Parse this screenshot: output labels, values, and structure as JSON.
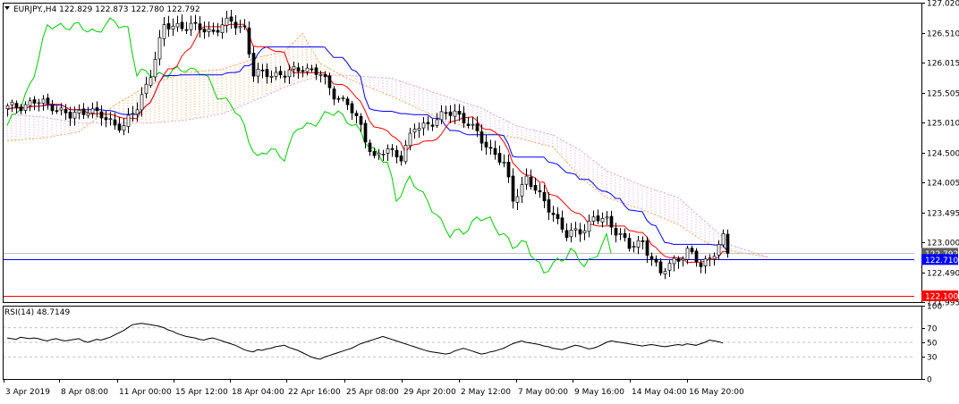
{
  "header": {
    "symbol": "EURJPY.,H4",
    "open": "122.829",
    "high": "122.873",
    "low": "122.780",
    "close": "122.792"
  },
  "rsi": {
    "label": "RSI(14) 48.7149",
    "value": 48.7149
  },
  "chart_data": [
    {
      "type": "candlestick",
      "title": "EURJPY.,H4 122.829 122.873 122.780 122.792",
      "ylim": [
        121.995,
        127.02
      ],
      "y_ticks": [
        "127.020",
        "126.510",
        "126.015",
        "125.505",
        "125.010",
        "124.500",
        "124.005",
        "123.495",
        "123.000",
        "122.490",
        "121.995"
      ],
      "x_ticks": [
        "3 Apr 2019",
        "8 Apr 08:00",
        "11 Apr 00:00",
        "15 Apr 12:00",
        "18 Apr 04:00",
        "22 Apr 16:00",
        "25 Apr 08:00",
        "29 Apr 20:00",
        "2 May 12:00",
        "7 May 00:00",
        "9 May 16:00",
        "14 May 04:00",
        "16 May 20:00"
      ],
      "horizontal_lines": [
        {
          "label": "122.710",
          "value": 122.71,
          "color": "#0000ff"
        },
        {
          "label": "122.100",
          "value": 122.1,
          "color": "#ff0000"
        }
      ],
      "last_price_label": "122.792",
      "colors": {
        "tenkan": "#ff0000",
        "kijun": "#0000ff",
        "chikou": "#00cc00",
        "span_a": "#f4a460",
        "span_b": "#d8a8d8",
        "candle": "#000000"
      },
      "close_anchors": [
        [
          0,
          125.25
        ],
        [
          6,
          125.35
        ],
        [
          10,
          125.3
        ],
        [
          14,
          125.1
        ],
        [
          18,
          125.25
        ],
        [
          22,
          125.05
        ],
        [
          26,
          124.95
        ],
        [
          29,
          125.25
        ],
        [
          32,
          125.85
        ],
        [
          35,
          126.6
        ],
        [
          38,
          126.65
        ],
        [
          42,
          126.6
        ],
        [
          46,
          126.55
        ],
        [
          50,
          126.7
        ],
        [
          53,
          126.6
        ],
        [
          55,
          125.8
        ],
        [
          58,
          125.85
        ],
        [
          62,
          125.8
        ],
        [
          66,
          125.95
        ],
        [
          70,
          125.8
        ],
        [
          73,
          125.5
        ],
        [
          76,
          125.3
        ],
        [
          79,
          124.95
        ],
        [
          82,
          124.4
        ],
        [
          85,
          124.55
        ],
        [
          88,
          124.45
        ],
        [
          91,
          124.9
        ],
        [
          94,
          125.0
        ],
        [
          97,
          125.1
        ],
        [
          100,
          125.2
        ],
        [
          103,
          125.0
        ],
        [
          106,
          124.7
        ],
        [
          109,
          124.5
        ],
        [
          111,
          124.3
        ],
        [
          113,
          123.7
        ],
        [
          116,
          124.1
        ],
        [
          119,
          123.75
        ],
        [
          122,
          123.5
        ],
        [
          125,
          123.1
        ],
        [
          128,
          123.2
        ],
        [
          131,
          123.4
        ],
        [
          134,
          123.35
        ],
        [
          137,
          123.15
        ],
        [
          139,
          122.9
        ],
        [
          142,
          123.0
        ],
        [
          144,
          122.75
        ],
        [
          146,
          122.45
        ],
        [
          149,
          122.7
        ],
        [
          152,
          122.85
        ],
        [
          155,
          122.6
        ],
        [
          158,
          122.85
        ],
        [
          160,
          123.05
        ],
        [
          161,
          122.8
        ]
      ],
      "cloud_anchors": [
        [
          0,
          124.7,
          125.15
        ],
        [
          8,
          124.75,
          125.1
        ],
        [
          16,
          124.85,
          125.0
        ],
        [
          24,
          125.3,
          125.0
        ],
        [
          32,
          125.65,
          125.0
        ],
        [
          40,
          125.85,
          125.05
        ],
        [
          48,
          125.9,
          125.15
        ],
        [
          56,
          126.1,
          125.4
        ],
        [
          62,
          126.2,
          125.6
        ],
        [
          66,
          126.5,
          125.7
        ],
        [
          70,
          126.0,
          125.8
        ],
        [
          76,
          125.75,
          125.8
        ],
        [
          86,
          125.45,
          125.75
        ],
        [
          96,
          125.1,
          125.5
        ],
        [
          106,
          124.85,
          125.25
        ],
        [
          114,
          124.75,
          124.95
        ],
        [
          122,
          124.6,
          124.8
        ],
        [
          128,
          124.1,
          124.55
        ],
        [
          134,
          123.75,
          124.2
        ],
        [
          142,
          123.55,
          123.95
        ],
        [
          150,
          123.3,
          123.75
        ],
        [
          156,
          123.0,
          123.35
        ],
        [
          162,
          122.85,
          122.95
        ],
        [
          170,
          122.75,
          122.75
        ]
      ]
    },
    {
      "type": "line",
      "title": "RSI(14) 48.7149",
      "ylim": [
        0,
        100
      ],
      "y_ticks": [
        "100",
        "70",
        "50",
        "30",
        "0"
      ],
      "levels": [
        70,
        50,
        30
      ],
      "series": [
        {
          "values": [
            56,
            55,
            54,
            57,
            56,
            55,
            56,
            55,
            53,
            52,
            54,
            55,
            53,
            52,
            53,
            54,
            55,
            52,
            50,
            52,
            54,
            53,
            55,
            57,
            60,
            63,
            66,
            70,
            74,
            75,
            76,
            75,
            74,
            73,
            72,
            70,
            67,
            65,
            62,
            60,
            58,
            57,
            56,
            54,
            53,
            55,
            56,
            54,
            52,
            50,
            48,
            46,
            43,
            40,
            38,
            37,
            40,
            39,
            41,
            42,
            44,
            45,
            46,
            43,
            41,
            39,
            36,
            33,
            30,
            28,
            27,
            30,
            32,
            34,
            36,
            38,
            40,
            42,
            45,
            48,
            50,
            52,
            54,
            56,
            58,
            56,
            54,
            52,
            50,
            48,
            46,
            44,
            42,
            40,
            38,
            37,
            36,
            35,
            34,
            35,
            38,
            40,
            42,
            40,
            38,
            36,
            34,
            35,
            37,
            38,
            40,
            42,
            45,
            48,
            50,
            52,
            50,
            49,
            48,
            47,
            45,
            44,
            42,
            41,
            40,
            42,
            44,
            46,
            45,
            43,
            41,
            42,
            44,
            47,
            50,
            52,
            51,
            50,
            49,
            48,
            47,
            46,
            45,
            46,
            47,
            46,
            45,
            44,
            45,
            46,
            47,
            46,
            48,
            47,
            46,
            48,
            50,
            53,
            52,
            51,
            49
          ]
        }
      ]
    }
  ]
}
